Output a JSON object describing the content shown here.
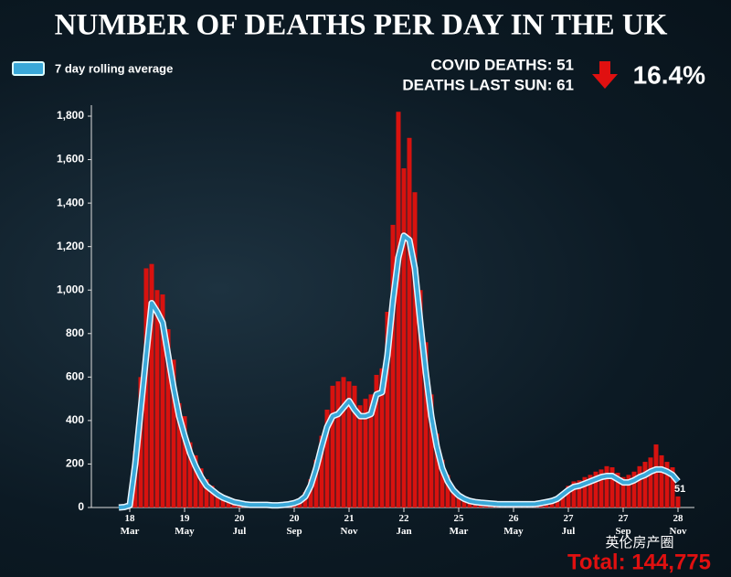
{
  "chart_data": {
    "type": "bar_line",
    "title": "NUMBER OF DEATHS PER DAY IN THE UK",
    "covid_deaths": "COVID DEATHS: 51",
    "deaths_last_sun": "DEATHS LAST SUN: 61",
    "change": "16.4%",
    "end_label": "51",
    "total": "Total: 144,775",
    "watermark": "英伦房产圈",
    "categories": [
      null,
      null,
      "18\nMar",
      null,
      null,
      null,
      null,
      null,
      null,
      null,
      null,
      null,
      "19\nMay",
      null,
      null,
      null,
      null,
      null,
      null,
      null,
      null,
      null,
      "20\nJul",
      null,
      null,
      null,
      null,
      null,
      null,
      null,
      null,
      null,
      "20\nSep",
      null,
      null,
      null,
      null,
      null,
      null,
      null,
      null,
      null,
      "21\nNov",
      null,
      null,
      null,
      null,
      null,
      null,
      null,
      null,
      null,
      "22\nJan",
      null,
      null,
      null,
      null,
      null,
      null,
      null,
      null,
      null,
      "25\nMar",
      null,
      null,
      null,
      null,
      null,
      null,
      null,
      null,
      null,
      "26\nMay",
      null,
      null,
      null,
      null,
      null,
      null,
      null,
      null,
      null,
      "27\nJul",
      null,
      null,
      null,
      null,
      null,
      null,
      null,
      null,
      null,
      "27\nSep",
      null,
      null,
      null,
      null,
      null,
      null,
      null,
      null,
      null,
      "28\nNov"
    ],
    "series": [
      {
        "color": "#d8120f",
        "kind": "bar",
        "values": [
          0,
          5,
          30,
          260,
          600,
          1100,
          1120,
          1000,
          980,
          820,
          680,
          480,
          420,
          300,
          240,
          180,
          130,
          100,
          70,
          55,
          40,
          30,
          25,
          18,
          14,
          13,
          14,
          12,
          11,
          12,
          14,
          18,
          24,
          38,
          70,
          130,
          220,
          330,
          450,
          560,
          580,
          600,
          580,
          560,
          470,
          500,
          520,
          610,
          640,
          900,
          1300,
          1820,
          1560,
          1700,
          1450,
          1000,
          760,
          520,
          340,
          220,
          150,
          95,
          65,
          48,
          34,
          28,
          25,
          22,
          20,
          18,
          17,
          16,
          17,
          16,
          17,
          16,
          18,
          24,
          30,
          36,
          48,
          72,
          100,
          120,
          125,
          140,
          150,
          165,
          175,
          190,
          185,
          160,
          140,
          150,
          165,
          190,
          210,
          230,
          290,
          240,
          210,
          185,
          51
        ]
      },
      {
        "name": "7 day rolling average",
        "color": "#3aa8d8",
        "kind": "line",
        "values": [
          0,
          2,
          10,
          200,
          450,
          700,
          940,
          900,
          850,
          700,
          550,
          420,
          330,
          250,
          190,
          140,
          100,
          80,
          60,
          45,
          35,
          25,
          20,
          15,
          12,
          12,
          12,
          12,
          10,
          10,
          12,
          15,
          20,
          30,
          50,
          100,
          180,
          280,
          370,
          420,
          430,
          460,
          490,
          450,
          420,
          420,
          430,
          520,
          530,
          700,
          950,
          1150,
          1250,
          1230,
          1100,
          850,
          620,
          420,
          280,
          180,
          120,
          80,
          55,
          40,
          30,
          25,
          22,
          20,
          18,
          16,
          15,
          15,
          15,
          15,
          15,
          15,
          16,
          20,
          25,
          30,
          40,
          60,
          80,
          95,
          100,
          110,
          120,
          130,
          140,
          145,
          145,
          130,
          115,
          115,
          125,
          140,
          150,
          165,
          175,
          175,
          165,
          150,
          120
        ]
      }
    ],
    "ylim": [
      0,
      1800
    ],
    "yticks": [
      0,
      200,
      400,
      600,
      800,
      {
        "value": 1000,
        "label": "1,000"
      },
      {
        "value": 1200,
        "label": "1,200"
      },
      {
        "value": 1400,
        "label": "1,400"
      },
      {
        "value": 1600,
        "label": "1,600"
      },
      {
        "value": 1800,
        "label": "1,800"
      }
    ]
  }
}
